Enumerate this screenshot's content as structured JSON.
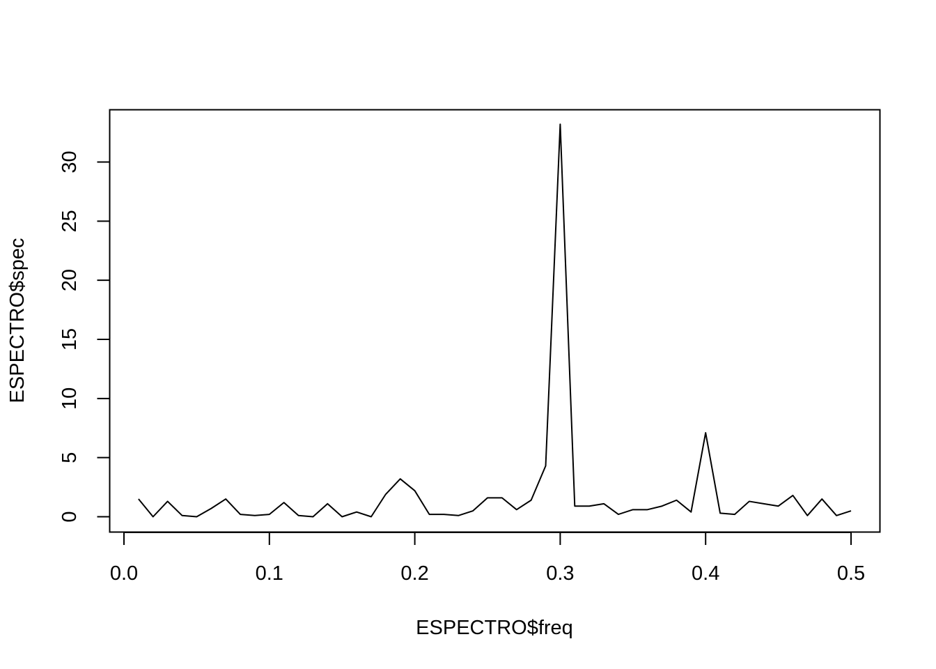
{
  "chart_data": {
    "type": "line",
    "title": "",
    "xlabel": "ESPECTRO$freq",
    "ylabel": "ESPECTRO$spec",
    "xlim": [
      0.0,
      0.5
    ],
    "ylim": [
      0,
      33.2
    ],
    "xticks": [
      "0.0",
      "0.1",
      "0.2",
      "0.3",
      "0.4",
      "0.5"
    ],
    "yticks": [
      "0",
      "5",
      "10",
      "15",
      "20",
      "25",
      "30"
    ],
    "grid": false,
    "line_color": "#000000",
    "series": [
      {
        "x": [
          0.01,
          0.02,
          0.03,
          0.04,
          0.05,
          0.06,
          0.07,
          0.08,
          0.09,
          0.1,
          0.11,
          0.12,
          0.13,
          0.14,
          0.15,
          0.16,
          0.17,
          0.18,
          0.19,
          0.2,
          0.21,
          0.22,
          0.23,
          0.24,
          0.25,
          0.26,
          0.27,
          0.28,
          0.29,
          0.3,
          0.31,
          0.32,
          0.33,
          0.34,
          0.35,
          0.36,
          0.37,
          0.38,
          0.39,
          0.4,
          0.41,
          0.42,
          0.43,
          0.44,
          0.45,
          0.46,
          0.47,
          0.48,
          0.49,
          0.5
        ],
        "values": [
          1.5,
          0.0,
          1.3,
          0.1,
          0.0,
          0.7,
          1.5,
          0.2,
          0.1,
          0.2,
          1.2,
          0.1,
          0.0,
          1.1,
          0.0,
          0.4,
          0.0,
          1.9,
          3.2,
          2.2,
          0.2,
          0.2,
          0.1,
          0.5,
          1.6,
          1.6,
          0.6,
          1.4,
          4.3,
          33.2,
          0.9,
          0.9,
          1.1,
          0.2,
          0.6,
          0.6,
          0.9,
          1.4,
          0.4,
          7.1,
          0.3,
          0.2,
          1.3,
          1.1,
          0.9,
          1.8,
          0.1,
          1.5,
          0.1,
          0.5
        ]
      }
    ]
  }
}
